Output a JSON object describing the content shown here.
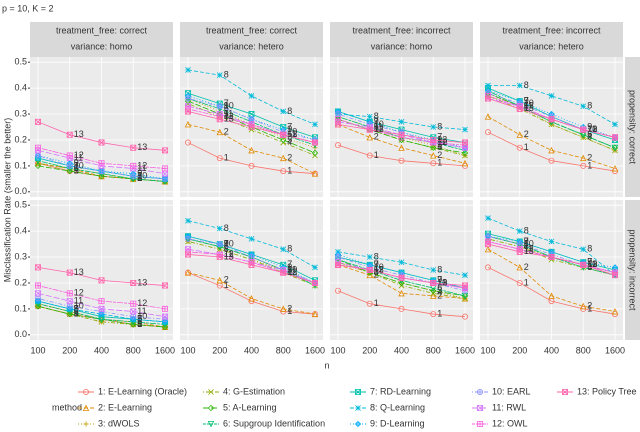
{
  "chart_data": {
    "type": "line",
    "title": "p = 10, K = 2",
    "x_label": "n",
    "y_label": "Misclassification Rate (smaller the better)",
    "legend_title": "method",
    "categories": [
      "100",
      "200",
      "400",
      "800",
      "1600"
    ],
    "ylim": [
      -0.02,
      0.52
    ],
    "yticks": [
      {
        "value": 0,
        "label": "0.0"
      },
      0.1,
      0.2,
      0.3,
      0.4,
      0.5
    ],
    "grid": true,
    "columns": [
      [
        "treatment_free: correct",
        "variance: homo"
      ],
      [
        "treatment_free: correct",
        "variance: hetero"
      ],
      [
        "treatment_free: incorrect",
        "variance: homo"
      ],
      [
        "treatment_free: incorrect",
        "variance: hetero"
      ]
    ],
    "rows": [
      "propensity: correct",
      "propensity: incorrect"
    ],
    "series": [
      {
        "name": "1: E-Learning (Oracle)",
        "label": "1",
        "color": "#F8766D",
        "marker": "circle",
        "dash": "solid"
      },
      {
        "name": "2: E-Learning",
        "label": "2",
        "color": "#E18A00",
        "marker": "triangle",
        "dash": "dashed"
      },
      {
        "name": "3: dWOLS",
        "label": "3",
        "color": "#BE9C00",
        "marker": "plus",
        "dash": "dotted"
      },
      {
        "name": "4: G-Estimation",
        "label": "4",
        "color": "#8CAB00",
        "marker": "cross",
        "dash": "dotdash"
      },
      {
        "name": "5: A-Learning",
        "label": "5",
        "color": "#24B700",
        "marker": "diamond",
        "dash": "longdash"
      },
      {
        "name": "6: Supgroup Identification",
        "label": "6",
        "color": "#00BE70",
        "marker": "triangle-down",
        "dash": "twodash"
      },
      {
        "name": "7: RD-Learning",
        "label": "7",
        "color": "#00C1AB",
        "marker": "square cross",
        "dash": "solid"
      },
      {
        "name": "8: Q-Learning",
        "label": "8",
        "color": "#00BBDA",
        "marker": "plus cross",
        "dash": "dashed"
      },
      {
        "name": "9: D-Learning",
        "label": "9",
        "color": "#00ACFC",
        "marker": "diamond plus",
        "dash": "dotted"
      },
      {
        "name": "10: EARL",
        "label": "10",
        "color": "#8B93FF",
        "marker": "circle plus",
        "dash": "dotdash"
      },
      {
        "name": "11: RWL",
        "label": "11",
        "color": "#D575FE",
        "marker": "square cross",
        "dash": "longdash"
      },
      {
        "name": "12: OWL",
        "label": "12",
        "color": "#F962DD",
        "marker": "square plus",
        "dash": "twodash"
      },
      {
        "name": "13: Policy Tree",
        "label": "13",
        "color": "#FF65AC",
        "marker": "square cross",
        "dash": "solid"
      }
    ],
    "panels": [
      [
        [
          0.11,
          0.08,
          0.06,
          0.05,
          0.04
        ],
        [
          0.11,
          0.09,
          0.06,
          0.05,
          0.04
        ],
        [
          0.11,
          0.08,
          0.06,
          0.05,
          0.04
        ],
        [
          0.11,
          0.09,
          0.07,
          0.05,
          0.04
        ],
        [
          0.1,
          0.08,
          0.06,
          0.05,
          0.04
        ],
        [
          0.12,
          0.09,
          0.07,
          0.05,
          0.04
        ],
        [
          0.13,
          0.1,
          0.08,
          0.06,
          0.05
        ],
        [
          0.13,
          0.1,
          0.08,
          0.06,
          0.05
        ],
        [
          0.14,
          0.11,
          0.08,
          0.07,
          0.05
        ],
        [
          0.14,
          0.1,
          0.08,
          0.06,
          0.05
        ],
        [
          0.16,
          0.13,
          0.1,
          0.09,
          0.07
        ],
        [
          0.17,
          0.14,
          0.11,
          0.1,
          0.09
        ],
        [
          0.27,
          0.22,
          0.19,
          0.17,
          0.16
        ]
      ],
      [
        [
          0.19,
          0.13,
          0.1,
          0.08,
          0.07
        ],
        [
          0.26,
          0.23,
          0.16,
          0.13,
          0.07
        ],
        [
          0.36,
          0.31,
          0.26,
          0.21,
          0.17
        ],
        [
          0.34,
          0.29,
          0.24,
          0.19,
          0.14
        ],
        [
          0.35,
          0.3,
          0.25,
          0.2,
          0.15
        ],
        [
          0.36,
          0.32,
          0.27,
          0.22,
          0.18
        ],
        [
          0.38,
          0.34,
          0.3,
          0.25,
          0.21
        ],
        [
          0.47,
          0.45,
          0.37,
          0.31,
          0.26
        ],
        [
          0.37,
          0.33,
          0.28,
          0.24,
          0.2
        ],
        [
          0.36,
          0.33,
          0.28,
          0.23,
          0.2
        ],
        [
          0.33,
          0.3,
          0.26,
          0.22,
          0.19
        ],
        [
          0.32,
          0.29,
          0.26,
          0.22,
          0.19
        ],
        [
          0.31,
          0.28,
          0.25,
          0.22,
          0.19
        ]
      ],
      [
        [
          0.18,
          0.14,
          0.12,
          0.11,
          0.1
        ],
        [
          0.26,
          0.21,
          0.17,
          0.14,
          0.11
        ],
        [
          0.29,
          0.25,
          0.21,
          0.18,
          0.14
        ],
        [
          0.28,
          0.24,
          0.2,
          0.17,
          0.14
        ],
        [
          0.28,
          0.24,
          0.2,
          0.17,
          0.15
        ],
        [
          0.29,
          0.25,
          0.21,
          0.19,
          0.16
        ],
        [
          0.31,
          0.27,
          0.24,
          0.21,
          0.19
        ],
        [
          0.3,
          0.29,
          0.27,
          0.25,
          0.24
        ],
        [
          0.31,
          0.27,
          0.23,
          0.2,
          0.17
        ],
        [
          0.3,
          0.26,
          0.23,
          0.19,
          0.17
        ],
        [
          0.27,
          0.25,
          0.22,
          0.19,
          0.17
        ],
        [
          0.28,
          0.24,
          0.21,
          0.19,
          0.18
        ],
        [
          0.26,
          0.24,
          0.22,
          0.2,
          0.19
        ]
      ],
      [
        [
          0.23,
          0.17,
          0.12,
          0.1,
          0.08
        ],
        [
          0.29,
          0.22,
          0.16,
          0.13,
          0.09
        ],
        [
          0.38,
          0.33,
          0.26,
          0.21,
          0.16
        ],
        [
          0.37,
          0.32,
          0.26,
          0.21,
          0.16
        ],
        [
          0.38,
          0.33,
          0.27,
          0.22,
          0.17
        ],
        [
          0.39,
          0.33,
          0.27,
          0.22,
          0.17
        ],
        [
          0.4,
          0.35,
          0.29,
          0.24,
          0.2
        ],
        [
          0.41,
          0.41,
          0.37,
          0.33,
          0.26
        ],
        [
          0.39,
          0.35,
          0.3,
          0.25,
          0.21
        ],
        [
          0.38,
          0.34,
          0.29,
          0.24,
          0.21
        ],
        [
          0.36,
          0.33,
          0.28,
          0.24,
          0.21
        ],
        [
          0.37,
          0.33,
          0.28,
          0.24,
          0.21
        ],
        [
          0.36,
          0.32,
          0.28,
          0.24,
          0.21
        ]
      ],
      [
        [
          0.11,
          0.08,
          0.06,
          0.04,
          0.03
        ],
        [
          0.12,
          0.09,
          0.06,
          0.05,
          0.03
        ],
        [
          0.11,
          0.08,
          0.05,
          0.04,
          0.03
        ],
        [
          0.11,
          0.08,
          0.05,
          0.04,
          0.03
        ],
        [
          0.11,
          0.08,
          0.06,
          0.04,
          0.03
        ],
        [
          0.12,
          0.09,
          0.06,
          0.05,
          0.04
        ],
        [
          0.13,
          0.1,
          0.07,
          0.06,
          0.05
        ],
        [
          0.13,
          0.1,
          0.08,
          0.06,
          0.05
        ],
        [
          0.13,
          0.1,
          0.08,
          0.06,
          0.05
        ],
        [
          0.14,
          0.11,
          0.09,
          0.07,
          0.06
        ],
        [
          0.16,
          0.13,
          0.1,
          0.09,
          0.07
        ],
        [
          0.19,
          0.16,
          0.13,
          0.12,
          0.1
        ],
        [
          0.26,
          0.24,
          0.21,
          0.2,
          0.19
        ]
      ],
      [
        [
          0.24,
          0.19,
          0.13,
          0.09,
          0.08
        ],
        [
          0.24,
          0.21,
          0.14,
          0.1,
          0.08
        ],
        [
          0.36,
          0.33,
          0.29,
          0.25,
          0.19
        ],
        [
          0.36,
          0.33,
          0.29,
          0.24,
          0.19
        ],
        [
          0.37,
          0.34,
          0.3,
          0.25,
          0.2
        ],
        [
          0.37,
          0.34,
          0.3,
          0.25,
          0.19
        ],
        [
          0.38,
          0.35,
          0.31,
          0.27,
          0.21
        ],
        [
          0.44,
          0.41,
          0.37,
          0.33,
          0.26
        ],
        [
          0.38,
          0.35,
          0.31,
          0.26,
          0.2
        ],
        [
          0.37,
          0.35,
          0.3,
          0.25,
          0.2
        ],
        [
          0.33,
          0.31,
          0.28,
          0.25,
          0.2
        ],
        [
          0.32,
          0.31,
          0.28,
          0.24,
          0.2
        ],
        [
          0.31,
          0.3,
          0.27,
          0.24,
          0.2
        ]
      ],
      [
        [
          0.17,
          0.12,
          0.1,
          0.08,
          0.07
        ],
        [
          0.27,
          0.23,
          0.16,
          0.15,
          0.14
        ],
        [
          0.28,
          0.24,
          0.2,
          0.17,
          0.14
        ],
        [
          0.28,
          0.24,
          0.19,
          0.16,
          0.14
        ],
        [
          0.29,
          0.24,
          0.2,
          0.17,
          0.15
        ],
        [
          0.29,
          0.25,
          0.21,
          0.18,
          0.15
        ],
        [
          0.3,
          0.27,
          0.24,
          0.21,
          0.18
        ],
        [
          0.32,
          0.3,
          0.28,
          0.25,
          0.23
        ],
        [
          0.31,
          0.27,
          0.24,
          0.21,
          0.18
        ],
        [
          0.3,
          0.26,
          0.23,
          0.2,
          0.17
        ],
        [
          0.28,
          0.25,
          0.22,
          0.2,
          0.18
        ],
        [
          0.27,
          0.25,
          0.22,
          0.2,
          0.18
        ],
        [
          0.27,
          0.25,
          0.22,
          0.2,
          0.19
        ]
      ],
      [
        [
          0.26,
          0.2,
          0.13,
          0.1,
          0.08
        ],
        [
          0.33,
          0.26,
          0.15,
          0.11,
          0.09
        ],
        [
          0.37,
          0.34,
          0.3,
          0.26,
          0.23
        ],
        [
          0.37,
          0.34,
          0.29,
          0.26,
          0.23
        ],
        [
          0.38,
          0.35,
          0.3,
          0.27,
          0.24
        ],
        [
          0.38,
          0.35,
          0.3,
          0.26,
          0.23
        ],
        [
          0.39,
          0.36,
          0.32,
          0.28,
          0.25
        ],
        [
          0.45,
          0.4,
          0.36,
          0.33,
          0.23
        ],
        [
          0.38,
          0.36,
          0.32,
          0.28,
          0.26
        ],
        [
          0.38,
          0.35,
          0.31,
          0.27,
          0.24
        ],
        [
          0.36,
          0.33,
          0.3,
          0.27,
          0.24
        ],
        [
          0.36,
          0.33,
          0.3,
          0.27,
          0.24
        ],
        [
          0.35,
          0.32,
          0.3,
          0.27,
          0.23
        ]
      ]
    ]
  }
}
